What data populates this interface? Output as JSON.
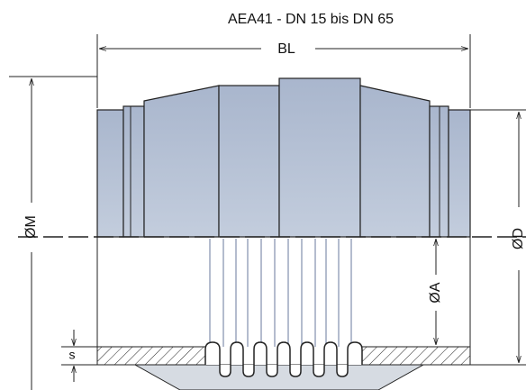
{
  "title": "AEA41 - DN 15 bis DN 65",
  "dimensions": {
    "bl": "BL",
    "m": "ØM",
    "d": "ØD",
    "a": "ØA",
    "s": "s"
  }
}
